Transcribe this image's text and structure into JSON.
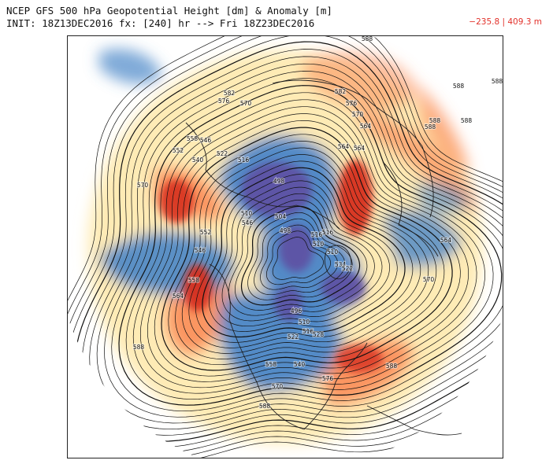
{
  "header": {
    "line1": "NCEP GFS 500 hPa Geopotential Height [dm] & Anomaly [m]",
    "line2": "INIT: 18Z13DEC2016 fx: [240] hr --> Fri 18Z23DEC2016",
    "anomaly_range": "−235.8 | 409.3 m"
  },
  "colors": {
    "strong_positive": "#d7301f",
    "positive": "#fc8d59",
    "weak_positive": "#fee8a8",
    "weak_negative": "#c6dbef",
    "negative": "#4a86c8",
    "strong_negative": "#5e4fa2",
    "contour": "#111111"
  },
  "contour_labels": [
    "588",
    "582",
    "576",
    "570",
    "564",
    "558",
    "552",
    "546",
    "540",
    "534",
    "528",
    "522",
    "516",
    "510",
    "504",
    "498"
  ],
  "map_labels": [
    {
      "text": "588"
    },
    {
      "text": "588"
    },
    {
      "text": "588"
    },
    {
      "text": "582"
    },
    {
      "text": "576"
    },
    {
      "text": "570"
    },
    {
      "text": "588"
    },
    {
      "text": "582"
    },
    {
      "text": "576"
    },
    {
      "text": "570"
    },
    {
      "text": "564"
    },
    {
      "text": "552"
    },
    {
      "text": "558"
    },
    {
      "text": "546"
    },
    {
      "text": "540"
    },
    {
      "text": "522"
    },
    {
      "text": "516"
    },
    {
      "text": "570"
    },
    {
      "text": "498"
    },
    {
      "text": "504"
    },
    {
      "text": "510"
    },
    {
      "text": "564"
    },
    {
      "text": "516"
    },
    {
      "text": "510"
    },
    {
      "text": "546"
    },
    {
      "text": "498"
    },
    {
      "text": "516"
    },
    {
      "text": "510"
    },
    {
      "text": "534"
    },
    {
      "text": "522"
    },
    {
      "text": "552"
    },
    {
      "text": "546"
    },
    {
      "text": "558"
    },
    {
      "text": "564"
    },
    {
      "text": "588"
    },
    {
      "text": "496"
    },
    {
      "text": "510"
    },
    {
      "text": "516"
    },
    {
      "text": "522"
    },
    {
      "text": "528"
    },
    {
      "text": "540"
    },
    {
      "text": "558"
    },
    {
      "text": "570"
    },
    {
      "text": "576"
    },
    {
      "text": "588"
    },
    {
      "text": "564"
    },
    {
      "text": "588"
    },
    {
      "text": "588"
    },
    {
      "text": "564"
    },
    {
      "text": "570"
    },
    {
      "text": "588"
    }
  ]
}
